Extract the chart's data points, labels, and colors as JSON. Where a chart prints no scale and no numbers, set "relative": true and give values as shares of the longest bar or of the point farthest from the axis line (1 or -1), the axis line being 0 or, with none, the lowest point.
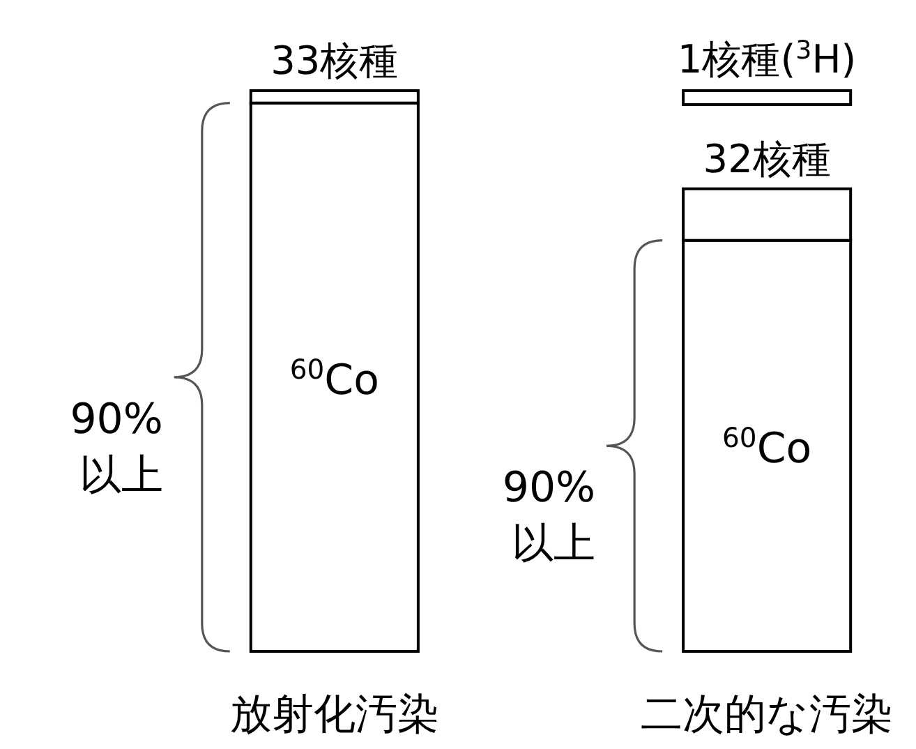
{
  "chart_data": {
    "type": "bar",
    "relative": true,
    "stacked": true,
    "categories": [
      "放射化汚染",
      "二次的な汚染"
    ],
    "series": [
      {
        "name": "$^{60}$Co",
        "color": "#ffffff",
        "values": [
          0.978,
          0.733
        ]
      },
      {
        "color": "#ffffff",
        "values": [
          0.022,
          0.092
        ]
      }
    ],
    "annotations": [
      {
        "text": "33核種",
        "x": "放射化汚染",
        "y": 1.0
      },
      {
        "text": "32核種",
        "x": "二次的な汚染",
        "y": 0.825
      },
      "90%以上",
      "90%以上",
      "1核種($^{3}$H)"
    ]
  }
}
